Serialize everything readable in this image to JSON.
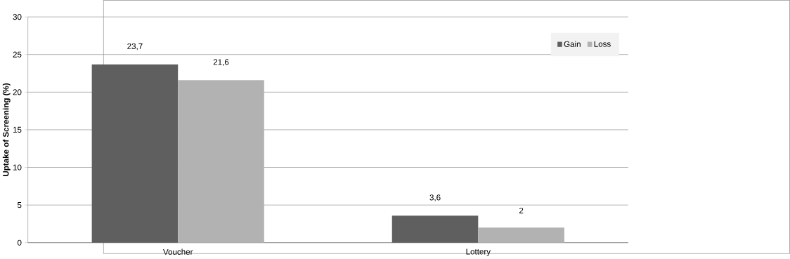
{
  "chart_data": {
    "type": "bar",
    "ylabel": "Uptake of Screening (%)",
    "categories": [
      "Voucher",
      "Lottery"
    ],
    "series": [
      {
        "name": "Gain",
        "color": "#5f5f5f",
        "values": [
          23.7,
          3.6
        ],
        "value_labels": [
          "23,7",
          "3,6"
        ]
      },
      {
        "name": "Loss",
        "color": "#b2b2b2",
        "values": [
          21.6,
          2
        ],
        "value_labels": [
          "21,6",
          "2"
        ]
      }
    ],
    "ylim": [
      0,
      30
    ],
    "yticks": [
      0,
      5,
      10,
      15,
      20,
      25,
      30
    ],
    "grid": "y",
    "legend": "top right"
  }
}
